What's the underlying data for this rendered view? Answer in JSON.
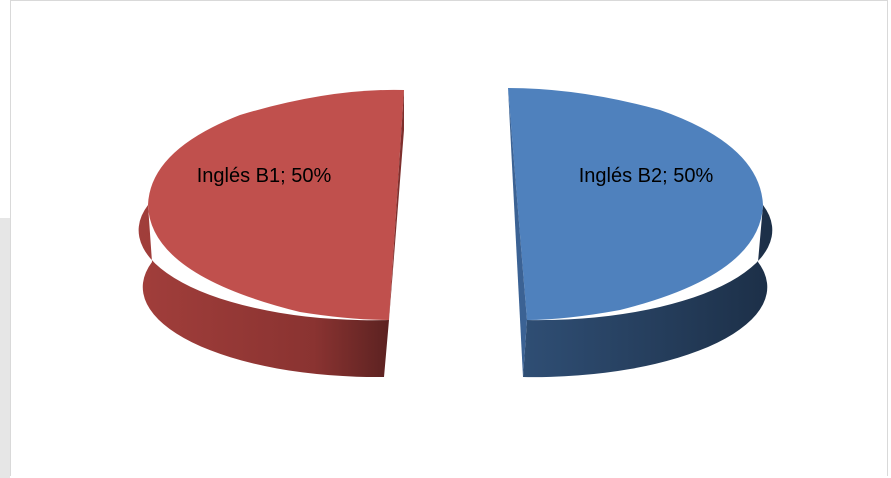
{
  "chart_data": {
    "type": "pie",
    "style": "3d-exploded",
    "slices": [
      {
        "name": "Inglés B1",
        "value": 50,
        "label": "Inglés B1; 50%",
        "color": "#C0504D"
      },
      {
        "name": "Inglés B2",
        "value": 50,
        "label": "Inglés B2; 50%",
        "color": "#4F81BD"
      }
    ],
    "title": "",
    "legend": "none"
  }
}
